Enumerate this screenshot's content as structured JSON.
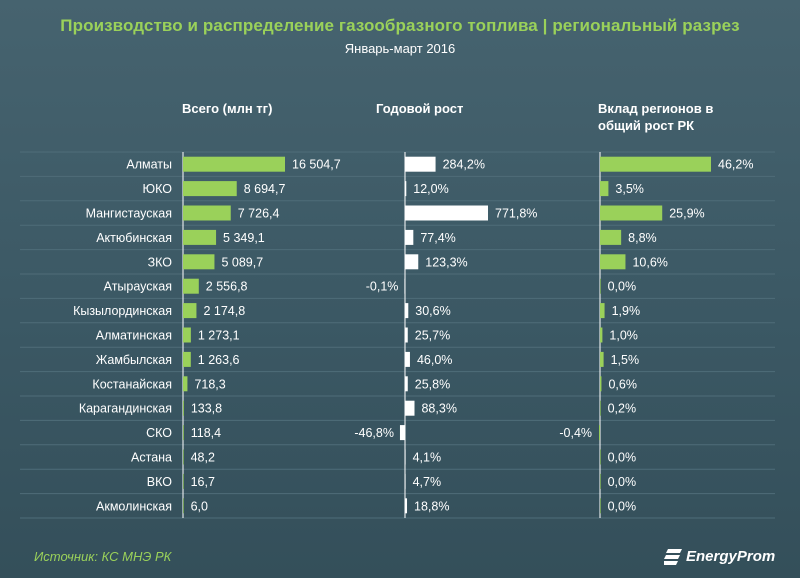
{
  "title": "Производство и распределение газообразного топлива | региональный разрез",
  "subtitle": "Январь-март 2016",
  "columns": {
    "total": "Всего (млн тг)",
    "growth": "Годовой рост",
    "contribution_line1": "Вклад регионов в",
    "contribution_line2": "общий рост РК"
  },
  "source": "Источник: КС МНЭ РК",
  "logo": {
    "text": "EnergyProm",
    "icon": "energyprom-logo-icon"
  },
  "colors": {
    "background": "#3d5a66",
    "accent_green": "#9ad15a",
    "growth_bar": "#ffffff",
    "row_line": "#4f6d79"
  },
  "chart_data": {
    "type": "bar",
    "categories": [
      "Алматы",
      "ЮКО",
      "Мангистауская",
      "Актюбинская",
      "ЗКО",
      "Атырауская",
      "Кызылординская",
      "Алматинская",
      "Жамбылская",
      "Костанайская",
      "Карагандинская",
      "СКО",
      "Астана",
      "ВКО",
      "Акмолинская"
    ],
    "series": [
      {
        "name": "Всего (млн тг)",
        "values": [
          16504.7,
          8694.7,
          7726.4,
          5349.1,
          5089.7,
          2556.8,
          2174.8,
          1273.1,
          1263.6,
          718.3,
          133.8,
          118.4,
          48.2,
          16.7,
          6.0
        ],
        "labels": [
          "16 504,7",
          "8 694,7",
          "7 726,4",
          "5 349,1",
          "5 089,7",
          "2 556,8",
          "2 174,8",
          "1 273,1",
          "1 263,6",
          "718,3",
          "133,8",
          "118,4",
          "48,2",
          "16,7",
          "6,0"
        ]
      },
      {
        "name": "Годовой рост",
        "values": [
          284.2,
          12.0,
          771.8,
          77.4,
          123.3,
          -0.1,
          30.6,
          25.7,
          46.0,
          25.8,
          88.3,
          -46.8,
          4.1,
          4.7,
          18.8
        ],
        "labels": [
          "284,2%",
          "12,0%",
          "771,8%",
          "77,4%",
          "123,3%",
          "-0,1%",
          "30,6%",
          "25,7%",
          "46,0%",
          "25,8%",
          "88,3%",
          "-46,8%",
          "4,1%",
          "4,7%",
          "18,8%"
        ]
      },
      {
        "name": "Вклад регионов в общий рост РК",
        "values": [
          46.2,
          3.5,
          25.9,
          8.8,
          10.6,
          0.0,
          1.9,
          1.0,
          1.5,
          0.6,
          0.2,
          -0.4,
          0.0,
          0.0,
          0.0
        ],
        "labels": [
          "46,2%",
          "3,5%",
          "25,9%",
          "8,8%",
          "10,6%",
          "0,0%",
          "1,9%",
          "1,0%",
          "1,5%",
          "0,6%",
          "0,2%",
          "-0,4%",
          "0,0%",
          "0,0%",
          "0,0%"
        ]
      }
    ]
  }
}
